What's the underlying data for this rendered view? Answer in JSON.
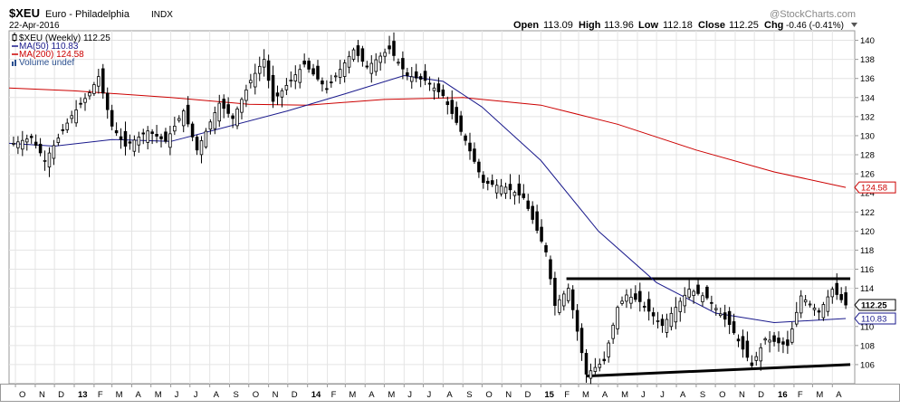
{
  "header": {
    "symbol": "$XEU",
    "name": "Euro - Philadelphia",
    "exchange": "INDX",
    "date": "22-Apr-2016",
    "watermark": "@StockCharts.com",
    "ohlc": [
      {
        "label": "Open",
        "value": "113.09"
      },
      {
        "label": "High",
        "value": "113.96"
      },
      {
        "label": "Low",
        "value": "112.18"
      },
      {
        "label": "Close",
        "value": "112.25"
      },
      {
        "label": "Chg",
        "value": "-0.46 (-0.41%)"
      }
    ]
  },
  "legend": [
    {
      "text": "$XEU (Weekly) 112.25",
      "color": "#000000",
      "icon": "candle-icon"
    },
    {
      "text": "MA(50) 110.83",
      "color": "#1a1a8c",
      "icon": "line-icon"
    },
    {
      "text": "MA(200) 124.58",
      "color": "#cc0000",
      "icon": "line-icon"
    },
    {
      "text": "Volume undef",
      "color": "#2a4f8f",
      "icon": "volume-bars-icon"
    }
  ],
  "price_tags": [
    {
      "value": 124.58,
      "label": "124.58",
      "color": "#cc0000"
    },
    {
      "value": 112.25,
      "label": "112.25",
      "color": "#000000"
    },
    {
      "value": 110.83,
      "label": "110.83",
      "color": "#1a1a8c"
    }
  ],
  "colors": {
    "up": "#ffffff",
    "down": "#000000",
    "ma50": "#1a1a8c",
    "ma200": "#cc0000",
    "grid": "#e4e4e4",
    "frame": "#999999"
  },
  "chart_data": {
    "type": "candlestick",
    "title": "$XEU Euro - Philadelphia INDX",
    "subtitle": "22-Apr-2016",
    "ylim": [
      104,
      141
    ],
    "y_ticks": [
      106,
      108,
      110,
      112,
      114,
      116,
      118,
      120,
      122,
      124,
      126,
      128,
      130,
      132,
      134,
      136,
      138,
      140
    ],
    "x_tick_labels": [
      "O",
      "N",
      "D",
      "13",
      "F",
      "M",
      "A",
      "M",
      "J",
      "J",
      "A",
      "S",
      "O",
      "N",
      "D",
      "14",
      "F",
      "M",
      "A",
      "M",
      "J",
      "J",
      "A",
      "S",
      "O",
      "N",
      "D",
      "15",
      "F",
      "M",
      "A",
      "M",
      "J",
      "J",
      "A",
      "S",
      "O",
      "N",
      "D",
      "16",
      "F",
      "M",
      "A"
    ],
    "x_tick_dates": [
      "2012-10-01",
      "2012-11-01",
      "2012-12-01",
      "2013-01-01",
      "2013-02-01",
      "2013-03-01",
      "2013-04-01",
      "2013-05-01",
      "2013-06-01",
      "2013-07-01",
      "2013-08-01",
      "2013-09-01",
      "2013-10-01",
      "2013-11-01",
      "2013-12-01",
      "2014-01-01",
      "2014-02-01",
      "2014-03-01",
      "2014-04-01",
      "2014-05-01",
      "2014-06-01",
      "2014-07-01",
      "2014-08-01",
      "2014-09-01",
      "2014-10-01",
      "2014-11-01",
      "2014-12-01",
      "2015-01-01",
      "2015-02-01",
      "2015-03-01",
      "2015-04-01",
      "2015-05-01",
      "2015-06-01",
      "2015-07-01",
      "2015-08-01",
      "2015-09-01",
      "2015-10-01",
      "2015-11-01",
      "2015-12-01",
      "2016-01-01",
      "2016-02-01",
      "2016-03-01",
      "2016-04-01"
    ],
    "x_range": [
      "2012-09-21",
      "2016-05-06"
    ],
    "grid": true,
    "legend_position": "top-left",
    "closes": [
      {
        "date": "2012-09-28",
        "value": 129.2
      },
      {
        "date": "2012-10-26",
        "value": 129.8
      },
      {
        "date": "2012-11-16",
        "value": 127.4
      },
      {
        "date": "2012-12-28",
        "value": 132.1
      },
      {
        "date": "2013-01-25",
        "value": 134.5
      },
      {
        "date": "2013-02-08",
        "value": 136.2
      },
      {
        "date": "2013-03-01",
        "value": 131.0
      },
      {
        "date": "2013-03-22",
        "value": 128.9
      },
      {
        "date": "2013-04-26",
        "value": 130.5
      },
      {
        "date": "2013-05-24",
        "value": 129.4
      },
      {
        "date": "2013-06-21",
        "value": 132.6
      },
      {
        "date": "2013-07-12",
        "value": 128.5
      },
      {
        "date": "2013-08-16",
        "value": 133.4
      },
      {
        "date": "2013-09-06",
        "value": 131.8
      },
      {
        "date": "2013-10-04",
        "value": 135.8
      },
      {
        "date": "2013-10-25",
        "value": 138.0
      },
      {
        "date": "2013-11-08",
        "value": 133.6
      },
      {
        "date": "2013-12-27",
        "value": 137.5
      },
      {
        "date": "2014-01-31",
        "value": 134.9
      },
      {
        "date": "2014-03-14",
        "value": 139.0
      },
      {
        "date": "2014-04-04",
        "value": 137.2
      },
      {
        "date": "2014-05-09",
        "value": 139.1
      },
      {
        "date": "2014-06-06",
        "value": 136.3
      },
      {
        "date": "2014-07-04",
        "value": 135.8
      },
      {
        "date": "2014-08-01",
        "value": 134.2
      },
      {
        "date": "2014-09-05",
        "value": 129.5
      },
      {
        "date": "2014-10-03",
        "value": 125.1
      },
      {
        "date": "2014-11-07",
        "value": 124.6
      },
      {
        "date": "2014-12-05",
        "value": 123.5
      },
      {
        "date": "2015-01-09",
        "value": 117.8
      },
      {
        "date": "2015-01-23",
        "value": 112.2
      },
      {
        "date": "2015-02-13",
        "value": 114.0
      },
      {
        "date": "2015-03-13",
        "value": 105.0
      },
      {
        "date": "2015-04-10",
        "value": 106.4
      },
      {
        "date": "2015-05-01",
        "value": 112.0
      },
      {
        "date": "2015-05-15",
        "value": 113.3
      },
      {
        "date": "2015-06-05",
        "value": 112.6
      },
      {
        "date": "2015-07-10",
        "value": 110.1
      },
      {
        "date": "2015-08-21",
        "value": 113.9
      },
      {
        "date": "2015-09-18",
        "value": 113.0
      },
      {
        "date": "2015-10-23",
        "value": 110.2
      },
      {
        "date": "2015-11-27",
        "value": 105.9
      },
      {
        "date": "2015-12-18",
        "value": 108.7
      },
      {
        "date": "2016-01-22",
        "value": 108.0
      },
      {
        "date": "2016-02-12",
        "value": 113.2
      },
      {
        "date": "2016-03-11",
        "value": 111.5
      },
      {
        "date": "2016-04-01",
        "value": 113.9
      },
      {
        "date": "2016-04-22",
        "value": 112.25
      }
    ],
    "series": [
      {
        "name": "MA(50)",
        "points": [
          {
            "date": "2012-09-21",
            "value": 129.2
          },
          {
            "date": "2012-12-01",
            "value": 128.9
          },
          {
            "date": "2013-03-01",
            "value": 129.6
          },
          {
            "date": "2013-06-01",
            "value": 129.4
          },
          {
            "date": "2013-09-01",
            "value": 131.0
          },
          {
            "date": "2013-12-01",
            "value": 132.6
          },
          {
            "date": "2014-03-01",
            "value": 134.4
          },
          {
            "date": "2014-06-01",
            "value": 136.3
          },
          {
            "date": "2014-08-01",
            "value": 135.7
          },
          {
            "date": "2014-10-01",
            "value": 133.0
          },
          {
            "date": "2015-01-01",
            "value": 127.4
          },
          {
            "date": "2015-04-01",
            "value": 120.0
          },
          {
            "date": "2015-07-01",
            "value": 114.6
          },
          {
            "date": "2015-10-01",
            "value": 111.4
          },
          {
            "date": "2016-01-01",
            "value": 110.4
          },
          {
            "date": "2016-04-22",
            "value": 110.83
          }
        ]
      },
      {
        "name": "MA(200)",
        "points": [
          {
            "date": "2012-09-21",
            "value": 135.0
          },
          {
            "date": "2013-01-01",
            "value": 134.7
          },
          {
            "date": "2013-06-01",
            "value": 134.0
          },
          {
            "date": "2013-10-01",
            "value": 133.3
          },
          {
            "date": "2014-01-01",
            "value": 133.2
          },
          {
            "date": "2014-05-01",
            "value": 133.8
          },
          {
            "date": "2014-09-01",
            "value": 134.0
          },
          {
            "date": "2015-01-01",
            "value": 133.2
          },
          {
            "date": "2015-05-01",
            "value": 131.2
          },
          {
            "date": "2015-09-01",
            "value": 128.5
          },
          {
            "date": "2016-01-01",
            "value": 126.2
          },
          {
            "date": "2016-04-22",
            "value": 124.58
          }
        ]
      }
    ],
    "trendlines": [
      {
        "name": "upper",
        "from": {
          "date": "2015-02-10",
          "value": 115.0
        },
        "to": {
          "date": "2016-04-29",
          "value": 115.0
        }
      },
      {
        "name": "lower",
        "from": {
          "date": "2015-03-13",
          "value": 104.8
        },
        "to": {
          "date": "2016-04-29",
          "value": 106.0
        }
      }
    ]
  }
}
